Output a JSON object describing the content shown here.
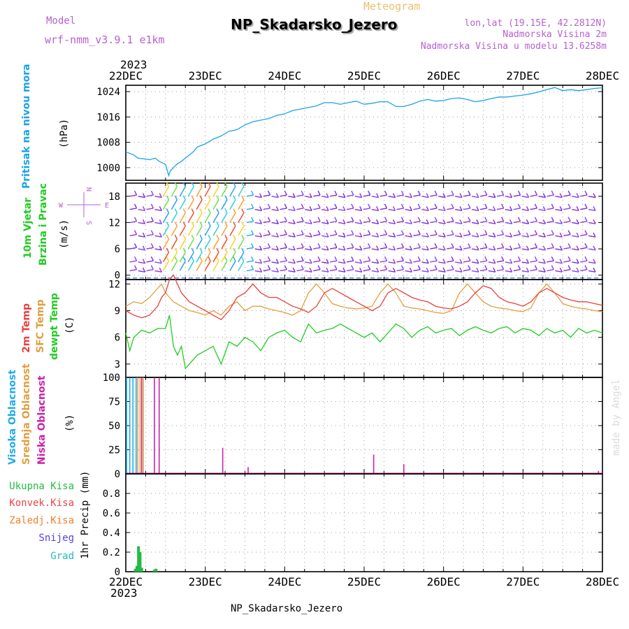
{
  "header": {
    "model_label": "Model",
    "model_name": "wrf-nmm_v3.9.1  e1km",
    "meteogram_label": "Meteogram",
    "station_title": "NP_Skadarsko_Jezero",
    "lonlat": "lon,lat (19.15E, 42.2812N)",
    "elev_2m": "Nadmorska Visina 2m",
    "elev_model": "Nadmorska Visina u modelu 13.6258m",
    "year_top": "2023",
    "year_bottom": "2023",
    "footer_station": "NP_Skadarsko_Jezero",
    "credit": "made by Angel",
    "compass": {
      "n": "N",
      "s": "S",
      "e": "E",
      "w": "W"
    }
  },
  "colors": {
    "pressure": "#1aa3e8",
    "temp2m": "#e8403c",
    "sfc": "#e0a040",
    "dewpt": "#22cc22",
    "visoka": "#22aaee",
    "srednja": "#e0a040",
    "niska": "#cc22aa",
    "ukupna": "#22bb44",
    "konvek": "#ee4444",
    "zaledj": "#f08030",
    "snijeg": "#5544dd",
    "grad": "#22bbbb",
    "wind": "#9933cc"
  },
  "chart_data": [
    {
      "type": "line",
      "panel": "pressure",
      "ylabel_title": "Pritisak na nivou mora",
      "ylabel_unit": "(hPa)",
      "ylim": [
        996,
        1026
      ],
      "yticks": [
        1000,
        1008,
        1016,
        1024
      ],
      "xlabels": [
        "22DEC",
        "23DEC",
        "24DEC",
        "25DEC",
        "26DEC",
        "27DEC",
        "28DEC"
      ],
      "series": [
        {
          "name": "Pritisak na nivou mora",
          "x": [
            0,
            0.1,
            0.15,
            0.22,
            0.3,
            0.37,
            0.42,
            0.5,
            0.54,
            0.56,
            0.6,
            0.64,
            0.7,
            0.75,
            0.8,
            0.85,
            0.9,
            0.95,
            1.0,
            1.1,
            1.2,
            1.3,
            1.4,
            1.5,
            1.6,
            1.7,
            1.8,
            1.9,
            2.0,
            2.1,
            2.2,
            2.3,
            2.4,
            2.5,
            2.6,
            2.7,
            2.8,
            2.9,
            3.0,
            3.1,
            3.2,
            3.3,
            3.4,
            3.5,
            3.6,
            3.7,
            3.8,
            3.9,
            4.0,
            4.1,
            4.2,
            4.3,
            4.4,
            4.5,
            4.6,
            4.7,
            4.8,
            4.9,
            5.0,
            5.1,
            5.2,
            5.3,
            5.4,
            5.5,
            5.6,
            5.7,
            5.8,
            5.9,
            6.0
          ],
          "values": [
            1005,
            1004,
            1003,
            1002.8,
            1002.5,
            1003,
            1002,
            1001,
            997.5,
            999,
            1000,
            1001,
            1002,
            1003,
            1004,
            1005,
            1006.5,
            1007,
            1007.5,
            1009,
            1010,
            1011.5,
            1012,
            1013.5,
            1014.5,
            1015,
            1015.5,
            1016.5,
            1017,
            1018,
            1018.5,
            1019,
            1019.5,
            1020.5,
            1020.5,
            1020,
            1020.5,
            1021,
            1020,
            1020.3,
            1020.8,
            1020.8,
            1019.3,
            1019.3,
            1020,
            1021,
            1021.5,
            1021,
            1021.2,
            1021.8,
            1022,
            1021.5,
            1020.8,
            1021.2,
            1021.8,
            1022.3,
            1022.3,
            1022.6,
            1022.9,
            1023.3,
            1023.9,
            1024.6,
            1025.3,
            1024.3,
            1024.6,
            1024.3,
            1024.6,
            1025,
            1025.2
          ]
        }
      ]
    },
    {
      "type": "barbs",
      "panel": "wind",
      "ylabel_title": "10m Vjetar",
      "ylabel_sub": "Brzina i Pravac",
      "ylabel_unit": "(m/s)",
      "ylim": [
        -1,
        21
      ],
      "yticks": [
        0,
        6,
        12,
        18
      ]
    },
    {
      "type": "line",
      "panel": "temperature",
      "ylabels": [
        "2m Temp",
        "SFC Temp",
        "dewpt Temp"
      ],
      "ylabel_unit": "(C)",
      "ylim": [
        1.5,
        12.5
      ],
      "yticks": [
        3,
        6,
        9,
        12
      ],
      "series": [
        {
          "name": "2m Temp",
          "x": [
            0,
            0.1,
            0.2,
            0.3,
            0.4,
            0.45,
            0.5,
            0.55,
            0.6,
            0.7,
            0.8,
            0.9,
            1.0,
            1.1,
            1.2,
            1.3,
            1.4,
            1.5,
            1.6,
            1.7,
            1.8,
            1.9,
            2.0,
            2.1,
            2.2,
            2.3,
            2.4,
            2.5,
            2.6,
            2.7,
            2.8,
            2.9,
            3.0,
            3.1,
            3.2,
            3.3,
            3.4,
            3.5,
            3.6,
            3.7,
            3.8,
            3.9,
            4.0,
            4.1,
            4.2,
            4.3,
            4.4,
            4.5,
            4.6,
            4.7,
            4.8,
            4.9,
            5.0,
            5.1,
            5.2,
            5.3,
            5.4,
            5.5,
            5.6,
            5.7,
            5.8,
            5.9,
            6.0
          ],
          "values": [
            9,
            8.5,
            8.2,
            8.5,
            9.5,
            10.5,
            11,
            12.5,
            13,
            11,
            10,
            9.5,
            9,
            8.5,
            8,
            9,
            10.5,
            11,
            12,
            11,
            10.5,
            10.5,
            10,
            9.5,
            9.2,
            8.8,
            9.5,
            11,
            11.5,
            11,
            10.5,
            10,
            9.5,
            9,
            9.5,
            11,
            11.5,
            11,
            10.5,
            10.2,
            10,
            9.5,
            9.3,
            9.2,
            9.5,
            10,
            11,
            11.8,
            11.5,
            10.5,
            10,
            9.8,
            9.5,
            10,
            11,
            11.5,
            11,
            10.5,
            10.2,
            10,
            10,
            9.8,
            9.6
          ]
        },
        {
          "name": "SFC Temp",
          "x": [
            0,
            0.1,
            0.2,
            0.3,
            0.4,
            0.45,
            0.5,
            0.55,
            0.6,
            0.7,
            0.8,
            0.9,
            1.0,
            1.1,
            1.2,
            1.3,
            1.4,
            1.5,
            1.6,
            1.7,
            1.8,
            1.9,
            2.0,
            2.1,
            2.2,
            2.3,
            2.4,
            2.5,
            2.6,
            2.7,
            2.8,
            2.9,
            3.0,
            3.1,
            3.2,
            3.3,
            3.4,
            3.5,
            3.6,
            3.7,
            3.8,
            3.9,
            4.0,
            4.1,
            4.2,
            4.3,
            4.4,
            4.5,
            4.6,
            4.7,
            4.8,
            4.9,
            5.0,
            5.1,
            5.2,
            5.3,
            5.4,
            5.5,
            5.6,
            5.7,
            5.8,
            5.9,
            6.0
          ],
          "values": [
            9.5,
            10,
            9.8,
            10.5,
            11.5,
            12,
            11,
            10.5,
            10,
            9.5,
            9,
            8.8,
            8.5,
            9,
            8.5,
            9.5,
            10,
            9,
            9.5,
            9.5,
            9.2,
            9,
            8.8,
            8.5,
            9,
            11,
            12,
            11,
            9.8,
            9.5,
            9.3,
            9.2,
            9.3,
            9.5,
            11,
            12,
            11,
            9.5,
            9.3,
            9.2,
            9,
            8.8,
            8.7,
            9,
            11,
            12,
            11,
            10,
            9.5,
            9.3,
            9.2,
            9,
            8.9,
            9.3,
            11,
            12,
            11,
            9.8,
            9.5,
            9.3,
            9.2,
            9,
            8.9
          ]
        },
        {
          "name": "dewpt Temp",
          "x": [
            0,
            0.05,
            0.1,
            0.2,
            0.3,
            0.4,
            0.5,
            0.55,
            0.6,
            0.65,
            0.7,
            0.75,
            0.8,
            0.9,
            1.0,
            1.1,
            1.2,
            1.3,
            1.4,
            1.5,
            1.6,
            1.7,
            1.8,
            1.9,
            2.0,
            2.1,
            2.2,
            2.3,
            2.4,
            2.5,
            2.6,
            2.7,
            2.8,
            2.9,
            3.0,
            3.1,
            3.2,
            3.3,
            3.4,
            3.5,
            3.6,
            3.7,
            3.8,
            3.9,
            4.0,
            4.1,
            4.2,
            4.3,
            4.4,
            4.5,
            4.6,
            4.7,
            4.8,
            4.9,
            5.0,
            5.1,
            5.2,
            5.3,
            5.4,
            5.5,
            5.6,
            5.7,
            5.8,
            5.9,
            6.0
          ],
          "values": [
            6.5,
            4.5,
            6,
            6.8,
            6.5,
            7,
            7,
            8.5,
            5,
            4,
            5,
            2.5,
            3,
            4,
            4.5,
            5,
            3,
            5.5,
            5,
            6,
            5.5,
            4.5,
            6,
            6.5,
            6.8,
            6,
            5.5,
            7.5,
            6.5,
            6.8,
            7,
            7.5,
            7,
            6.5,
            6,
            6.5,
            5.5,
            6.5,
            7.5,
            7,
            6,
            6.8,
            7.2,
            6.5,
            6.8,
            7,
            6.2,
            6.8,
            7.2,
            6.8,
            6.5,
            7,
            7.2,
            6.5,
            7,
            6.8,
            6.2,
            7,
            6.5,
            6.8,
            6,
            7,
            6.5,
            6.8,
            6.5
          ]
        }
      ]
    },
    {
      "type": "bar",
      "panel": "clouds",
      "ylabels": [
        "Visoka Oblacnost",
        "Srednja Oblacnost",
        "Niska Oblacnost"
      ],
      "ylabel_unit": "(%)",
      "ylim": [
        0,
        100
      ],
      "yticks": [
        0,
        25,
        50,
        75,
        100
      ],
      "series": [
        {
          "name": "Visoka Oblacnost",
          "x": [
            0.01,
            0.05,
            0.09,
            0.13
          ],
          "values": [
            100,
            100,
            100,
            100
          ]
        },
        {
          "name": "Srednja Oblacnost",
          "x": [
            0.15,
            0.18,
            0.22
          ],
          "values": [
            100,
            100,
            100
          ]
        },
        {
          "name": "Niska Oblacnost",
          "x": [
            0.2,
            0.36,
            0.42,
            1.22,
            1.54,
            3.12,
            3.5,
            5.95
          ],
          "values": [
            100,
            100,
            100,
            27,
            7,
            20,
            10,
            3
          ]
        }
      ]
    },
    {
      "type": "bar",
      "panel": "precip",
      "ylabels": [
        "Ukupna Kisa",
        "Konvek.Kisa",
        "Zaledj.Kisa",
        "Snijeg",
        "Grad"
      ],
      "ylabel_unit": "1hr Precip (mm)",
      "ylim": [
        0,
        1
      ],
      "yticks": [
        0,
        0.2,
        0.4,
        0.6,
        0.8
      ],
      "series": [
        {
          "name": "Ukupna Kisa",
          "x": [
            0.12,
            0.14,
            0.16,
            0.18,
            0.2,
            0.36,
            0.38
          ],
          "values": [
            0.03,
            0.06,
            0.26,
            0.2,
            0.04,
            0.02,
            0.03
          ]
        }
      ]
    }
  ]
}
